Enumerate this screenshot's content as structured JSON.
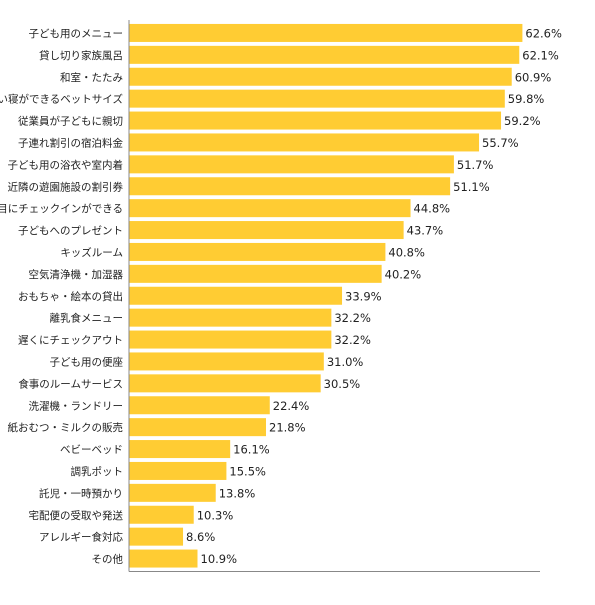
{
  "chart_data": {
    "type": "bar",
    "orientation": "horizontal",
    "unit": "%",
    "categories": [
      "子ども用のメニュー",
      "貸し切り家族風呂",
      "和室・たたみ",
      "添い寝ができるベットサイズ",
      "従業員が子どもに親切",
      "子連れ割引の宿泊料金",
      "子ども用の浴衣や室内着",
      "近隣の遊園施設の割引券",
      "早目にチェックインができる",
      "子どもへのプレゼント",
      "キッズルーム",
      "空気清浄機・加湿器",
      "おもちゃ・絵本の貸出",
      "離乳食メニュー",
      "遅くにチェックアウト",
      "子ども用の便座",
      "食事のルームサービス",
      "洗濯機・ランドリー",
      "紙おむつ・ミルクの販売",
      "ベビーベッド",
      "調乳ポット",
      "託児・一時預かり",
      "宅配便の受取や発送",
      "アレルギー食対応",
      "その他"
    ],
    "values": [
      62.6,
      62.1,
      60.9,
      59.8,
      59.2,
      55.7,
      51.7,
      51.1,
      44.8,
      43.7,
      40.8,
      40.2,
      33.9,
      32.2,
      32.2,
      31.0,
      30.5,
      22.4,
      21.8,
      16.1,
      15.5,
      13.8,
      10.3,
      8.6,
      10.9
    ],
    "value_labels": [
      "62.6%",
      "62.1%",
      "60.9%",
      "59.8%",
      "59.2%",
      "55.7%",
      "51.7%",
      "51.1%",
      "44.8%",
      "43.7%",
      "40.8%",
      "40.2%",
      "33.9%",
      "32.2%",
      "32.2%",
      "31.0%",
      "30.5%",
      "22.4%",
      "21.8%",
      "16.1%",
      "15.5%",
      "13.8%",
      "10.3%",
      "8.6%",
      "10.9%"
    ],
    "title": "",
    "xlabel": "",
    "ylabel": "",
    "xlim": [
      0,
      65.4
    ],
    "grid": false,
    "legend": "none",
    "bar_color": "#ffcc33",
    "axis_color": "#888888"
  }
}
